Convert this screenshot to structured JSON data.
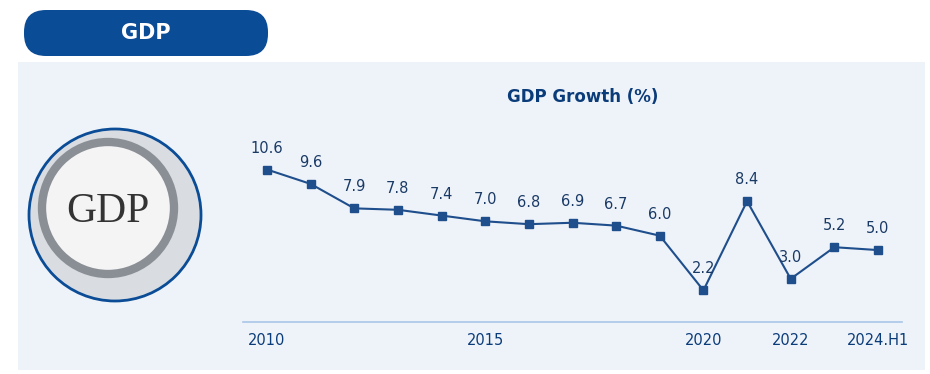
{
  "header": {
    "title": "GDP"
  },
  "image_text": "GDP",
  "chart_data": {
    "type": "line",
    "title": "GDP Growth (%)",
    "categories": [
      "2010",
      null,
      null,
      null,
      null,
      "2015",
      null,
      null,
      null,
      null,
      "2020",
      null,
      "2022",
      null,
      "2024.H1"
    ],
    "values": [
      10.6,
      9.6,
      7.9,
      7.8,
      7.4,
      7.0,
      6.8,
      6.9,
      6.7,
      6.0,
      2.2,
      8.4,
      3.0,
      5.2,
      5.0
    ],
    "color": "#1f4e8c",
    "marker": "square",
    "line_style": "solid",
    "ylim": [
      0,
      13
    ],
    "yticks": [],
    "data_labels": true,
    "tick_labels": "x",
    "grid": false
  }
}
